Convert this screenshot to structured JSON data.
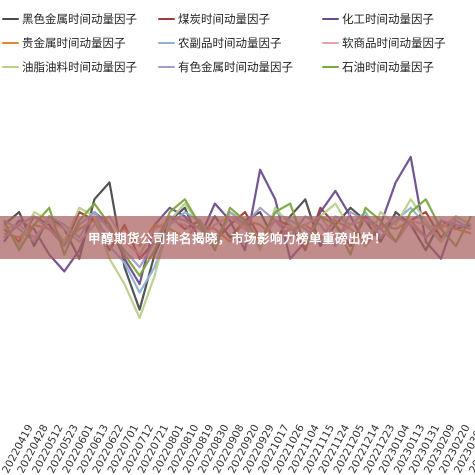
{
  "banner": {
    "text": "甲醇期货公司排名揭晓，市场影响力榜单重磅出炉！"
  },
  "chart_data": {
    "type": "line",
    "title": "",
    "xlabel": "",
    "ylabel": "",
    "grid": false,
    "legend_position": "top",
    "x": [
      "20220419",
      "20220428",
      "20220512",
      "20220523",
      "20220601",
      "20220613",
      "20220622",
      "20220701",
      "20220712",
      "20220721",
      "20220801",
      "20220810",
      "20220819",
      "20220830",
      "20220908",
      "20220920",
      "20220929",
      "20221017",
      "20221026",
      "20221104",
      "20221115",
      "20221124",
      "20221205",
      "20221214",
      "20221223",
      "20230104",
      "20230113",
      "20230131",
      "20230209",
      "20230220",
      "20230301",
      "20230310"
    ],
    "series": [
      {
        "name": "黑色金属时间动量因子",
        "color": "#4a4a4a",
        "values": [
          0.02,
          0.05,
          -0.03,
          0.04,
          0.01,
          -0.06,
          0.08,
          0.12,
          -0.08,
          -0.18,
          -0.05,
          0.03,
          0.06,
          -0.02,
          0.04,
          -0.01,
          0.03,
          0.05,
          -0.02,
          0.04,
          0.08,
          -0.03,
          0.02,
          0.06,
          0.03,
          -0.02,
          0.05,
          0.02,
          -0.04,
          0.03,
          0.01,
          0.02
        ]
      },
      {
        "name": "煤炭时间动量因子",
        "color": "#a33a3a",
        "values": [
          0.01,
          -0.02,
          0.04,
          0.02,
          -0.03,
          0.05,
          0.03,
          -0.04,
          0.02,
          -0.06,
          -0.02,
          0.04,
          0.01,
          0.03,
          -0.02,
          0.02,
          0.05,
          -0.01,
          0.03,
          0.02,
          -0.04,
          0.06,
          0.02,
          -0.03,
          0.04,
          0.01,
          -0.02,
          0.03,
          0.05,
          -0.01,
          0.02,
          0.01
        ]
      },
      {
        "name": "化工时间动量因子",
        "color": "#6b4c8a",
        "values": [
          -0.02,
          0.03,
          0.01,
          -0.05,
          -0.09,
          -0.04,
          0.05,
          0.02,
          -0.06,
          -0.12,
          0.02,
          0.06,
          0.04,
          -0.01,
          0.07,
          0.03,
          -0.04,
          0.15,
          0.08,
          -0.06,
          -0.02,
          0.05,
          0.1,
          0.04,
          -0.03,
          0.02,
          0.12,
          0.18,
          -0.02,
          -0.06,
          0.04,
          0.02
        ]
      },
      {
        "name": "贵金属时间动量因子",
        "color": "#e08a2e",
        "values": [
          0.0,
          -0.01,
          0.02,
          0.01,
          -0.02,
          0.01,
          0.03,
          -0.01,
          0.01,
          -0.03,
          0.02,
          0.01,
          -0.01,
          0.02,
          0.01,
          -0.02,
          0.03,
          0.02,
          -0.01,
          0.01,
          0.02,
          -0.01,
          0.03,
          0.01,
          -0.02,
          0.02,
          0.01,
          0.03,
          -0.01,
          0.02,
          0.01,
          0.0
        ]
      },
      {
        "name": "农副品时间动量因子",
        "color": "#8fb1d6",
        "values": [
          0.03,
          0.01,
          -0.02,
          0.04,
          0.02,
          -0.01,
          0.05,
          -0.03,
          -0.07,
          -0.14,
          -0.08,
          0.02,
          0.05,
          0.03,
          -0.02,
          0.04,
          0.02,
          -0.03,
          0.05,
          0.03,
          0.01,
          -0.02,
          0.04,
          0.02,
          0.05,
          -0.01,
          0.03,
          0.06,
          0.02,
          -0.02,
          0.03,
          0.01
        ]
      },
      {
        "name": "软商品时间动量因子",
        "color": "#e6a3a8",
        "values": [
          0.01,
          0.02,
          -0.01,
          0.03,
          0.01,
          -0.02,
          0.02,
          0.04,
          -0.02,
          -0.05,
          0.01,
          0.03,
          0.02,
          -0.01,
          0.02,
          0.04,
          0.01,
          -0.02,
          0.03,
          0.01,
          0.02,
          0.04,
          -0.01,
          0.02,
          0.03,
          0.01,
          -0.02,
          0.03,
          0.02,
          0.01,
          0.04,
          0.02
        ]
      },
      {
        "name": "油脂油料时间动量因子",
        "color": "#b9cf8a",
        "values": [
          0.02,
          -0.03,
          0.05,
          0.03,
          -0.02,
          0.06,
          0.04,
          -0.06,
          -0.12,
          -0.2,
          -0.1,
          0.03,
          0.07,
          0.02,
          -0.03,
          0.05,
          0.03,
          -0.04,
          0.06,
          0.02,
          -0.02,
          0.04,
          0.07,
          0.01,
          -0.03,
          0.05,
          0.02,
          0.08,
          0.03,
          -0.02,
          0.04,
          0.02
        ]
      },
      {
        "name": "有色金属时间动量因子",
        "color": "#a79ac7",
        "values": [
          -0.01,
          0.02,
          0.04,
          0.01,
          -0.03,
          0.02,
          0.05,
          0.01,
          -0.04,
          -0.08,
          -0.02,
          0.04,
          0.03,
          0.01,
          -0.02,
          0.05,
          0.02,
          0.06,
          0.03,
          -0.01,
          0.04,
          0.02,
          -0.03,
          0.05,
          0.03,
          0.01,
          0.04,
          0.02,
          -0.01,
          0.03,
          0.02,
          0.01
        ]
      },
      {
        "name": "石油时间动量因子",
        "color": "#7aa83f",
        "values": [
          0.03,
          -0.04,
          0.02,
          0.06,
          -0.05,
          0.03,
          0.07,
          0.02,
          -0.05,
          -0.1,
          -0.04,
          0.05,
          0.08,
          0.02,
          -0.04,
          0.06,
          0.03,
          -0.02,
          0.05,
          0.07,
          -0.03,
          0.04,
          0.02,
          -0.05,
          0.06,
          0.03,
          -0.02,
          0.05,
          0.08,
          0.01,
          -0.03,
          0.04
        ]
      }
    ],
    "ylim": [
      -0.24,
      0.22
    ]
  }
}
